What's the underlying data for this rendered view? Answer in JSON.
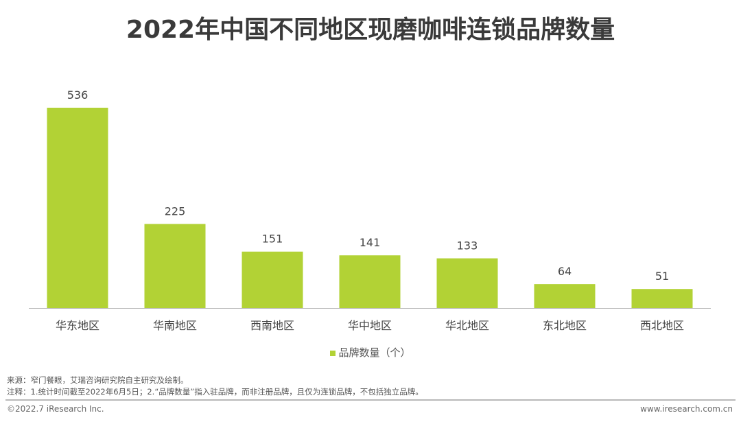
{
  "chart_data": {
    "type": "bar",
    "title": "2022年中国不同地区现磨咖啡连锁品牌数量",
    "categories": [
      "华东地区",
      "华南地区",
      "西南地区",
      "华中地区",
      "华北地区",
      "东北地区",
      "西北地区"
    ],
    "series": [
      {
        "name": "品牌数量（个）",
        "values": [
          536,
          225,
          151,
          141,
          133,
          64,
          51
        ],
        "color": "#b2d235"
      }
    ],
    "ylim": [
      0,
      536
    ],
    "grid": false,
    "legend": "bottom",
    "data_labels": true
  },
  "footer": {
    "source": "来源：窄门餐眼，艾瑞咨询研究院自主研究及绘制。",
    "note": "注释：1.统计时间截至2022年6月5日；2.“品牌数量”指入驻品牌，而非注册品牌，且仅为连锁品牌，不包括独立品牌。",
    "copyright": "©2022.7 iResearch Inc.",
    "website": "www.iresearch.com.cn"
  }
}
